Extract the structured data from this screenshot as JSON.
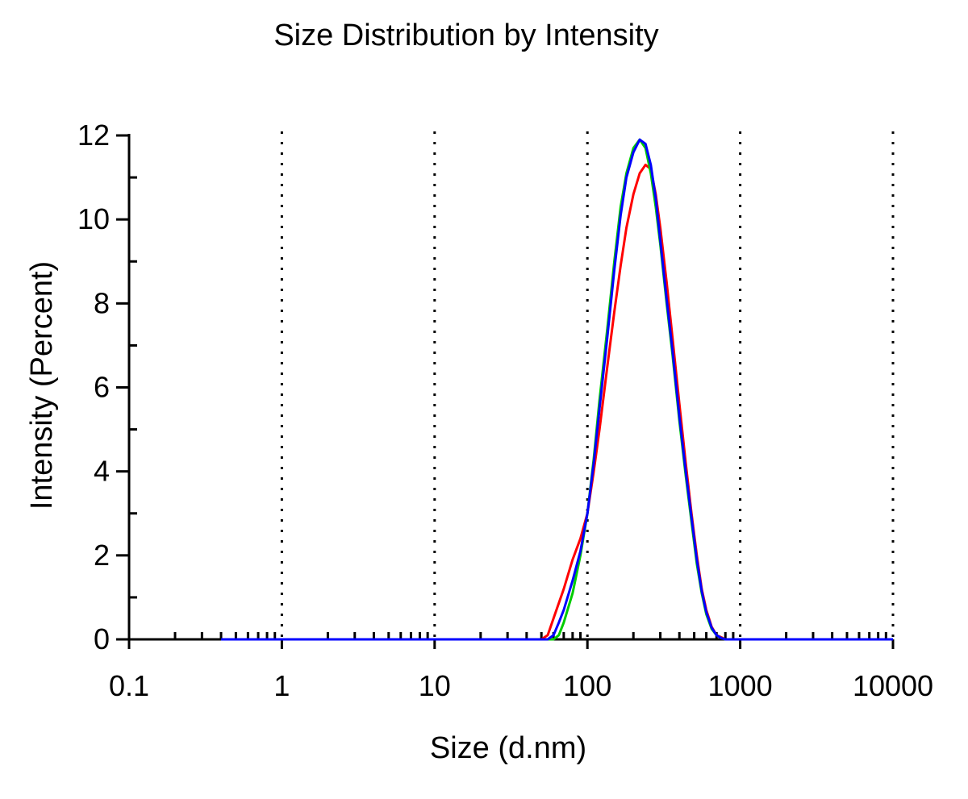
{
  "chart_data": {
    "type": "line",
    "title": "Size Distribution by Intensity",
    "xlabel": "Size (d.nm)",
    "ylabel": "Intensity (Percent)",
    "x_scale": "log",
    "xlim": [
      0.1,
      10000
    ],
    "ylim": [
      0,
      12
    ],
    "x_ticks": [
      "0.1",
      "1",
      "10",
      "100",
      "1000",
      "10000"
    ],
    "y_ticks": [
      "0",
      "2",
      "4",
      "6",
      "8",
      "10",
      "12"
    ],
    "grid": "vertical dotted at decades",
    "legend": "none",
    "series": [
      {
        "color": "#ff0000",
        "x": [
          0.4,
          50,
          55,
          60,
          70,
          80,
          90,
          100,
          110,
          120,
          135,
          150,
          165,
          180,
          200,
          220,
          240,
          260,
          280,
          300,
          330,
          360,
          400,
          440,
          480,
          520,
          560,
          600,
          650,
          700,
          750,
          800,
          900,
          10000
        ],
        "y": [
          0,
          0,
          0.1,
          0.5,
          1.2,
          1.9,
          2.4,
          3.0,
          4.0,
          5.0,
          6.5,
          7.8,
          8.9,
          9.8,
          10.6,
          11.1,
          11.3,
          11.2,
          10.6,
          9.8,
          8.5,
          7.2,
          5.6,
          4.2,
          3.0,
          2.0,
          1.2,
          0.7,
          0.3,
          0.1,
          0.05,
          0,
          0,
          0
        ]
      },
      {
        "color": "#00cc00",
        "x": [
          0.4,
          60,
          65,
          70,
          80,
          90,
          100,
          110,
          120,
          135,
          150,
          165,
          180,
          200,
          220,
          240,
          260,
          280,
          300,
          330,
          360,
          400,
          440,
          480,
          520,
          560,
          600,
          650,
          700,
          750,
          800,
          900,
          10000
        ],
        "y": [
          0,
          0,
          0.1,
          0.4,
          1.1,
          2.0,
          3.0,
          4.3,
          5.7,
          7.4,
          9.0,
          10.3,
          11.1,
          11.7,
          11.9,
          11.7,
          11.1,
          10.3,
          9.4,
          8.0,
          6.8,
          5.2,
          3.9,
          2.8,
          1.8,
          1.1,
          0.6,
          0.25,
          0.1,
          0.03,
          0,
          0,
          0
        ]
      },
      {
        "color": "#0000ff",
        "x": [
          0.4,
          55,
          60,
          65,
          70,
          80,
          90,
          100,
          110,
          120,
          135,
          150,
          165,
          180,
          200,
          220,
          240,
          260,
          280,
          300,
          330,
          360,
          400,
          440,
          480,
          520,
          560,
          600,
          650,
          700,
          750,
          800,
          900,
          10000
        ],
        "y": [
          0,
          0,
          0.1,
          0.4,
          0.7,
          1.4,
          2.1,
          3.0,
          4.2,
          5.5,
          7.2,
          8.8,
          10.1,
          11.0,
          11.6,
          11.9,
          11.8,
          11.3,
          10.5,
          9.5,
          8.1,
          6.9,
          5.3,
          4.0,
          2.9,
          1.9,
          1.15,
          0.65,
          0.28,
          0.1,
          0.03,
          0,
          0,
          0
        ]
      }
    ]
  }
}
